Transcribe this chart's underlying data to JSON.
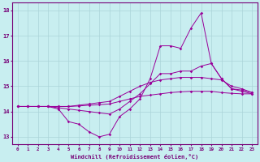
{
  "xlabel": "Windchill (Refroidissement éolien,°C)",
  "bg_color": "#c8eef0",
  "line_color": "#990099",
  "grid_color": "#aad4d8",
  "axis_color": "#770077",
  "tick_color": "#770077",
  "xlim": [
    -0.5,
    23.5
  ],
  "ylim": [
    12.7,
    18.3
  ],
  "xticks": [
    0,
    1,
    2,
    3,
    4,
    5,
    6,
    7,
    8,
    9,
    10,
    11,
    12,
    13,
    14,
    15,
    16,
    17,
    18,
    19,
    20,
    21,
    22,
    23
  ],
  "yticks": [
    13,
    14,
    15,
    16,
    17,
    18
  ],
  "line1": [
    14.2,
    14.2,
    14.2,
    14.2,
    14.1,
    13.6,
    13.5,
    13.2,
    13.0,
    13.1,
    13.8,
    14.1,
    14.5,
    15.3,
    16.6,
    16.6,
    16.5,
    17.3,
    17.9,
    15.9,
    15.3,
    14.9,
    14.8,
    14.7
  ],
  "line2": [
    14.2,
    14.2,
    14.2,
    14.2,
    14.15,
    14.1,
    14.05,
    14.0,
    13.95,
    13.9,
    14.1,
    14.4,
    14.7,
    15.1,
    15.5,
    15.5,
    15.6,
    15.6,
    15.8,
    15.9,
    15.3,
    14.9,
    14.85,
    14.75
  ],
  "line3": [
    14.2,
    14.2,
    14.2,
    14.2,
    14.2,
    14.2,
    14.25,
    14.3,
    14.35,
    14.4,
    14.6,
    14.8,
    15.0,
    15.15,
    15.25,
    15.3,
    15.35,
    15.35,
    15.35,
    15.3,
    15.25,
    15.0,
    14.9,
    14.75
  ],
  "line4": [
    14.2,
    14.2,
    14.2,
    14.2,
    14.2,
    14.2,
    14.22,
    14.25,
    14.27,
    14.3,
    14.4,
    14.5,
    14.6,
    14.65,
    14.7,
    14.75,
    14.78,
    14.8,
    14.8,
    14.8,
    14.75,
    14.72,
    14.7,
    14.7
  ]
}
